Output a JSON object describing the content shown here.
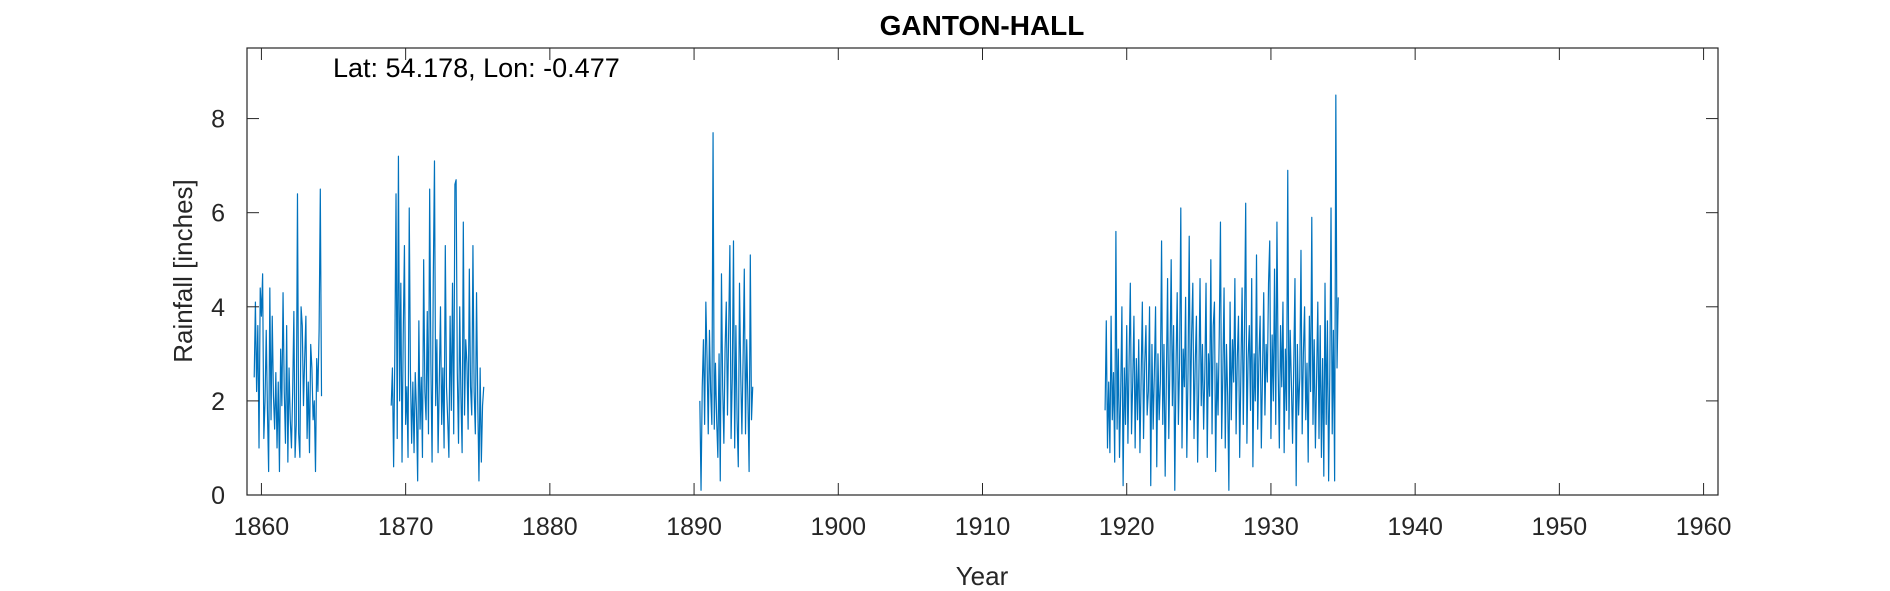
{
  "chart_data": {
    "type": "line",
    "title": "GANTON-HALL",
    "annotation": "Lat: 54.178, Lon: -0.477",
    "xlabel": "Year",
    "ylabel": "Rainfall [inches]",
    "xlim": [
      1859,
      1961
    ],
    "ylim": [
      0,
      9.5
    ],
    "xticks": [
      1860,
      1870,
      1880,
      1890,
      1900,
      1910,
      1920,
      1930,
      1940,
      1950,
      1960
    ],
    "yticks": [
      0,
      2,
      4,
      6,
      8
    ],
    "grid": false,
    "line_color": "#0072BD",
    "series": [
      {
        "frequency": "monthly",
        "segments": [
          {
            "start": 1859.5,
            "values": [
              2.5,
              4.1,
              2.2,
              3.6,
              1.0,
              4.4,
              3.8,
              4.7,
              1.2,
              2.0,
              3.5,
              1.8,
              0.5,
              4.4,
              1.6,
              3.8,
              2.1,
              1.4,
              2.6,
              1.0,
              2.4,
              0.5,
              3.1,
              1.9,
              4.3,
              2.2,
              1.1,
              3.6,
              0.7,
              2.7,
              1.6,
              1.0,
              2.2,
              3.9,
              0.8,
              1.5,
              6.4,
              1.3,
              0.8,
              4.0,
              3.6,
              1.9,
              2.9,
              3.8,
              1.2,
              2.4,
              0.9,
              3.2,
              2.7,
              1.6,
              2.0,
              0.5,
              2.9,
              2.2,
              3.5,
              6.5,
              2.1
            ]
          },
          {
            "start": 1869.0,
            "values": [
              1.9,
              2.7,
              0.6,
              3.0,
              6.4,
              1.2,
              7.2,
              2.0,
              4.5,
              0.7,
              3.4,
              5.3,
              1.5,
              2.3,
              0.8,
              6.1,
              2.6,
              1.1,
              2.4,
              0.9,
              2.6,
              1.8,
              0.3,
              3.7,
              1.4,
              2.5,
              0.8,
              5.0,
              2.2,
              1.6,
              3.9,
              1.3,
              6.5,
              2.8,
              0.7,
              4.6,
              7.1,
              1.9,
              3.3,
              0.9,
              2.4,
              4.0,
              1.5,
              2.7,
              1.0,
              5.3,
              2.3,
              1.6,
              0.8,
              3.8,
              1.8,
              4.5,
              1.3,
              6.6,
              6.7,
              2.6,
              1.1,
              4.0,
              2.1,
              0.9,
              5.8,
              1.7,
              3.3,
              2.8,
              1.4,
              4.8,
              2.3,
              1.7,
              5.3,
              2.2,
              1.3,
              4.3,
              2.0,
              0.3,
              2.7,
              0.7,
              1.9,
              2.3
            ]
          },
          {
            "start": 1890.4,
            "values": [
              2.0,
              0.1,
              2.3,
              3.3,
              1.5,
              4.1,
              2.9,
              1.3,
              3.5,
              2.2,
              1.5,
              7.7,
              1.4,
              2.8,
              1.6,
              0.8,
              3.0,
              0.3,
              4.7,
              2.3,
              1.1,
              3.1,
              4.1,
              1.7,
              3.5,
              5.3,
              1.2,
              2.5,
              5.4,
              1.0,
              3.6,
              1.6,
              0.6,
              4.5,
              2.6,
              1.3,
              2.9,
              4.8,
              1.3,
              3.3,
              2.0,
              0.5,
              5.1,
              1.6,
              2.3
            ]
          },
          {
            "start": 1918.5,
            "values": [
              1.8,
              3.7,
              1.0,
              2.4,
              0.9,
              3.8,
              1.6,
              2.6,
              0.7,
              5.6,
              1.4,
              3.1,
              0.8,
              2.2,
              4.0,
              0.2,
              2.7,
              1.5,
              3.6,
              1.1,
              2.9,
              4.5,
              1.3,
              2.4,
              3.8,
              1.0,
              2.9,
              1.6,
              3.3,
              0.9,
              2.5,
              4.1,
              1.2,
              2.8,
              3.6,
              1.7,
              2.2,
              4.0,
              0.2,
              3.2,
              1.4,
              2.6,
              4.0,
              0.6,
              3.0,
              1.6,
              2.4,
              5.4,
              1.5,
              3.2,
              0.4,
              2.5,
              4.6,
              1.2,
              2.9,
              5.0,
              1.9,
              3.6,
              0.1,
              2.7,
              4.3,
              1.5,
              2.8,
              6.1,
              1.0,
              3.1,
              2.3,
              4.2,
              0.8,
              2.6,
              5.5,
              1.6,
              3.4,
              4.5,
              1.2,
              2.8,
              3.8,
              0.7,
              2.4,
              4.6,
              1.9,
              3.2,
              1.4,
              2.6,
              4.5,
              0.8,
              3.0,
              2.1,
              5.0,
              1.3,
              3.6,
              4.1,
              0.5,
              2.8,
              1.7,
              3.4,
              5.8,
              1.2,
              2.6,
              4.4,
              1.0,
              3.2,
              2.1,
              0.1,
              4.1,
              1.6,
              3.3,
              2.4,
              4.6,
              1.3,
              2.9,
              3.8,
              0.8,
              2.6,
              4.4,
              1.5,
              3.5,
              6.2,
              1.1,
              2.9,
              3.6,
              1.8,
              4.6,
              0.6,
              3.0,
              2.0,
              5.1,
              1.4,
              2.9,
              3.8,
              1.0,
              2.6,
              4.3,
              1.7,
              3.2,
              2.4,
              4.5,
              5.4,
              1.2,
              3.4,
              2.0,
              4.8,
              1.5,
              5.8,
              2.7,
              1.0,
              3.6,
              2.3,
              4.1,
              0.9,
              3.1,
              1.8,
              6.9,
              1.4,
              3.5,
              2.4,
              1.1,
              2.8,
              4.6,
              0.2,
              3.2,
              1.7,
              2.5,
              5.2,
              1.3,
              3.0,
              4.0,
              1.6,
              2.8,
              0.7,
              3.8,
              2.2,
              5.9,
              1.5,
              3.3,
              1.0,
              2.5,
              4.1,
              1.2,
              3.6,
              0.8,
              2.9,
              0.4,
              4.5,
              1.5,
              3.7,
              0.3,
              2.6,
              6.1,
              1.3,
              3.5,
              0.3,
              8.5,
              2.7,
              4.2
            ]
          }
        ]
      }
    ]
  }
}
